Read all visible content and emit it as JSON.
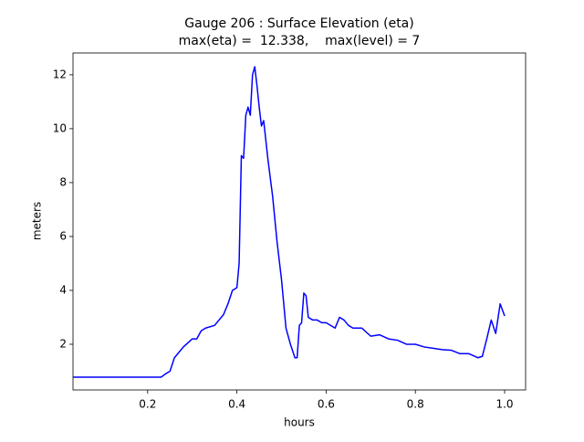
{
  "chart_data": {
    "type": "line",
    "title": "Gauge 206 : Surface Elevation (eta)",
    "subtitle": "max(eta) =  12.338,    max(level) = 7",
    "x_label": "hours",
    "y_label": "meters",
    "x": [
      0.033,
      0.1,
      0.2,
      0.23,
      0.24,
      0.25,
      0.26,
      0.28,
      0.3,
      0.31,
      0.32,
      0.33,
      0.35,
      0.37,
      0.38,
      0.39,
      0.4,
      0.405,
      0.41,
      0.415,
      0.42,
      0.425,
      0.43,
      0.435,
      0.44,
      0.445,
      0.45,
      0.455,
      0.46,
      0.47,
      0.48,
      0.49,
      0.5,
      0.51,
      0.52,
      0.53,
      0.535,
      0.54,
      0.545,
      0.55,
      0.555,
      0.56,
      0.57,
      0.58,
      0.59,
      0.6,
      0.62,
      0.63,
      0.64,
      0.65,
      0.66,
      0.68,
      0.7,
      0.72,
      0.74,
      0.76,
      0.78,
      0.8,
      0.82,
      0.84,
      0.86,
      0.88,
      0.9,
      0.92,
      0.94,
      0.95,
      0.96,
      0.97,
      0.98,
      0.99,
      1.0
    ],
    "series": [
      {
        "color": "#0000ff",
        "values": [
          0.78,
          0.78,
          0.78,
          0.78,
          0.9,
          1.0,
          1.5,
          1.9,
          2.2,
          2.2,
          2.5,
          2.6,
          2.7,
          3.1,
          3.5,
          4.0,
          4.1,
          5.0,
          9.0,
          8.9,
          10.5,
          10.8,
          10.5,
          12.0,
          12.3,
          11.6,
          10.8,
          10.1,
          10.3,
          8.8,
          7.5,
          5.8,
          4.4,
          2.6,
          2.0,
          1.5,
          1.5,
          2.7,
          2.8,
          3.9,
          3.8,
          3.0,
          2.9,
          2.9,
          2.8,
          2.8,
          2.6,
          3.0,
          2.9,
          2.7,
          2.6,
          2.6,
          2.3,
          2.35,
          2.2,
          2.15,
          2.0,
          2.0,
          1.9,
          1.85,
          1.8,
          1.78,
          1.65,
          1.65,
          1.5,
          1.55,
          2.2,
          2.9,
          2.4,
          3.5,
          3.05
        ]
      }
    ],
    "xlim": [
      0.0327,
      1.047
    ],
    "ylim": [
      0.305,
      12.81
    ],
    "xticks": [
      0.2,
      0.4,
      0.6,
      0.8,
      {
        "value": 1,
        "label": "1.0"
      }
    ],
    "yticks": [
      2,
      4,
      6,
      8,
      10,
      12
    ]
  }
}
